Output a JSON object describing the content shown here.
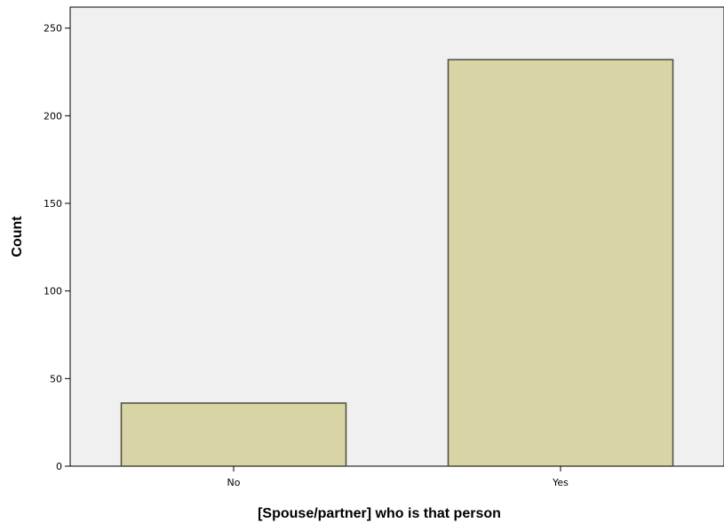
{
  "chart_data": {
    "type": "bar",
    "categories": [
      "No",
      "Yes"
    ],
    "values": [
      36,
      232
    ],
    "xlabel": "[Spouse/partner] who is that person",
    "ylabel": "Count",
    "ylim": [
      0,
      262
    ],
    "yticks": [
      0,
      50,
      100,
      150,
      200,
      250
    ],
    "grid": false,
    "legend": "none",
    "colors": {
      "plot_background": "#f0f0f0",
      "bar_fill": "#d8d4a6",
      "bar_stroke": "#4d4d3a",
      "axis": "#000000"
    }
  }
}
